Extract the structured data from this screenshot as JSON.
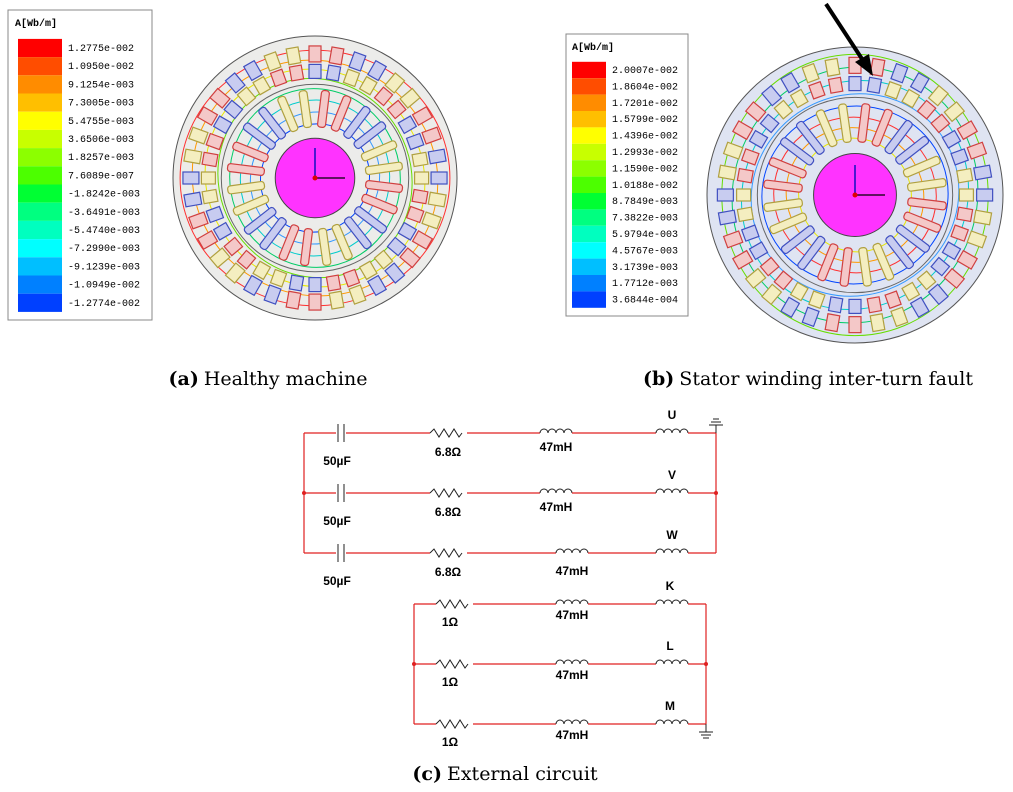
{
  "panel_a": {
    "legend_title": "A[Wb/m]",
    "legend_values": [
      "1.2775e-002",
      "1.0950e-002",
      "9.1254e-003",
      "7.3005e-003",
      "5.4755e-003",
      "3.6506e-003",
      "1.8257e-003",
      "7.6089e-007",
      "-1.8242e-003",
      "-3.6491e-003",
      "-5.4740e-003",
      "-7.2990e-003",
      "-9.1239e-003",
      "-1.0949e-002",
      "-1.2774e-002"
    ],
    "caption": {
      "label": "(a)",
      "text": "Healthy machine"
    }
  },
  "panel_b": {
    "legend_title": "A[Wb/m]",
    "legend_values": [
      "2.0007e-002",
      "1.8604e-002",
      "1.7201e-002",
      "1.5799e-002",
      "1.4396e-002",
      "1.2993e-002",
      "1.1590e-002",
      "1.0188e-002",
      "8.7849e-003",
      "7.3822e-003",
      "5.9794e-003",
      "4.5767e-003",
      "3.1739e-003",
      "1.7712e-003",
      "3.6844e-004"
    ],
    "caption": {
      "label": "(b)",
      "text": "Stator winding inter-turn fault"
    }
  },
  "panel_c": {
    "caption": {
      "label": "(c)",
      "text": "External circuit"
    },
    "top_rows": [
      {
        "capacitor": "50µF",
        "resistor": "6.8Ω",
        "inductor": "47mH",
        "phase": "U"
      },
      {
        "capacitor": "50µF",
        "resistor": "6.8Ω",
        "inductor": "47mH",
        "phase": "V"
      },
      {
        "capacitor": "50µF",
        "resistor": "6.8Ω",
        "inductor": "47mH",
        "phase": "W"
      }
    ],
    "bottom_rows": [
      {
        "resistor": "1Ω",
        "inductor": "47mH",
        "phase": "K"
      },
      {
        "resistor": "1Ω",
        "inductor": "47mH",
        "phase": "L"
      },
      {
        "resistor": "1Ω",
        "inductor": "47mH",
        "phase": "M"
      }
    ]
  }
}
